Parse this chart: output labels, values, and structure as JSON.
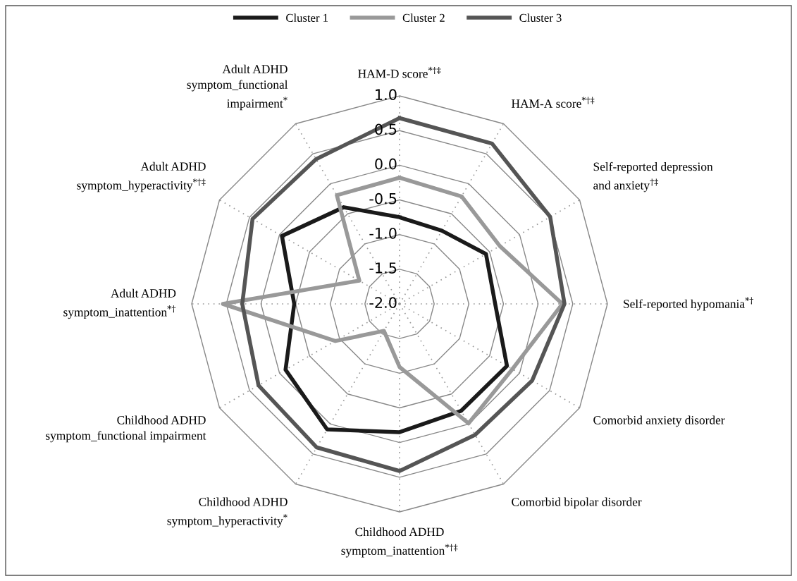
{
  "chart_data": {
    "type": "radar",
    "categories": [
      "HAM-D score$^{*†‡}$",
      "HAM-A score$^{*†‡}$",
      "Self-reported depression\nand anxiety$^{†‡}$",
      "Self-reported hypomania$^{*†}$",
      "Comorbid anxiety disorder",
      "Comorbid bipolar disorder",
      "Childhood ADHD\nsymptom_inattention$^{*†‡}$",
      "Childhood ADHD\nsymptom_hyperactivity$^{*}$",
      "Childhood ADHD\nsymptom_functional impairment",
      "Adult ADHD\nsymptom_inattention$^{*†}$",
      "Adult ADHD\nsymptom_hyperactivity$^{*†‡}$",
      "Adult ADHD\nsymptom_functional\nimpairment$^{*}$"
    ],
    "series": [
      {
        "name": "Cluster 1",
        "color": "#1a1a1a",
        "values": [
          -0.75,
          -0.78,
          -0.56,
          -0.62,
          -0.21,
          -0.22,
          -0.15,
          0.09,
          -0.1,
          -0.48,
          -0.04,
          -0.39
        ]
      },
      {
        "name": "Cluster 2",
        "color": "#999999",
        "values": [
          -0.18,
          -0.21,
          -0.33,
          0.35,
          -0.12,
          -0.01,
          -1.09,
          -1.55,
          -0.93,
          0.55,
          -1.33,
          -0.19
        ]
      },
      {
        "name": "Cluster 3",
        "color": "#555555",
        "values": [
          0.68,
          0.67,
          0.51,
          0.38,
          0.21,
          0.18,
          0.41,
          0.39,
          0.35,
          0.27,
          0.45,
          0.41
        ]
      }
    ],
    "ylim": [
      -2.0,
      1.0
    ],
    "yticks": [
      {
        "value": -2,
        "label": "-2.0"
      },
      {
        "value": -1.5,
        "label": "-1.5"
      },
      {
        "value": -1,
        "label": "-1.0"
      },
      {
        "value": -0.5,
        "label": "-0.5"
      },
      {
        "value": 0,
        "label": "0.0"
      },
      {
        "value": 0.5,
        "label": "0.5"
      },
      {
        "value": 1,
        "label": "1.0"
      }
    ],
    "grid": true,
    "legend": "top",
    "line_style": "solid",
    "marker": "none"
  }
}
